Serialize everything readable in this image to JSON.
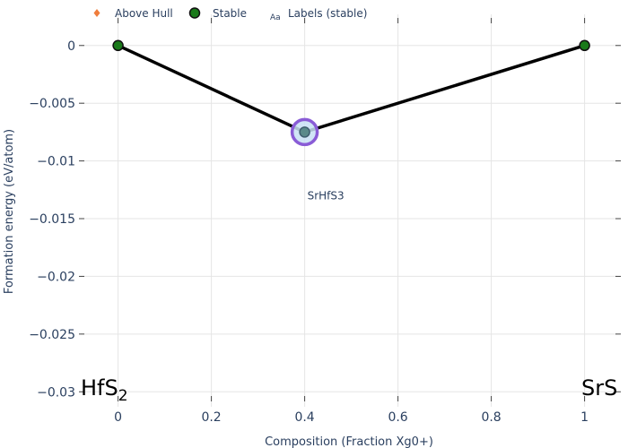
{
  "chart_data": {
    "type": "scatter",
    "title": "",
    "xlabel": "Composition (Fraction Xg0+)",
    "ylabel": "Formation energy (eV/atom)",
    "xlim": [
      -0.08,
      1.07
    ],
    "ylim": [
      -0.0313,
      0.0027
    ],
    "x_ticks": [
      0,
      0.2,
      0.4,
      0.6,
      0.8,
      1
    ],
    "x_tick_labels": [
      "0",
      "0.2",
      "0.4",
      "0.6",
      "0.8",
      "1"
    ],
    "y_ticks": [
      0,
      -0.005,
      -0.01,
      -0.015,
      -0.02,
      -0.025,
      -0.03
    ],
    "y_tick_labels": [
      "0",
      "−0.005",
      "−0.01",
      "−0.015",
      "−0.02",
      "−0.025",
      "−0.03"
    ],
    "grid": true,
    "legend": {
      "placement": "top-left",
      "items": [
        {
          "label": "Above Hull",
          "symbol": "diamond",
          "color": "#ef7d3c"
        },
        {
          "label": "Stable",
          "symbol": "circle",
          "color": "#1a7a1a"
        },
        {
          "label": "Labels (stable)",
          "symbol": "text",
          "glyph": "Aa",
          "color": "#2a3f5f"
        }
      ]
    },
    "hull_line": {
      "x": [
        0,
        0.4,
        1
      ],
      "y": [
        0,
        -0.0075,
        0
      ],
      "color": "#000000"
    },
    "stable_points": [
      {
        "x": 0,
        "y": 0,
        "color": "#1a7a1a"
      },
      {
        "x": 0.4,
        "y": -0.0075,
        "color": "#5a8a8a",
        "highlight_color": "#8a5cd6",
        "highlight_fill": "#c8e0f5",
        "label": "SrHfS3",
        "label_y": -0.013
      },
      {
        "x": 1,
        "y": 0,
        "color": "#1a7a1a"
      }
    ],
    "end_labels": {
      "left": {
        "text": "HfS",
        "subscript": "2"
      },
      "right": {
        "text": "SrS",
        "subscript": ""
      }
    }
  }
}
